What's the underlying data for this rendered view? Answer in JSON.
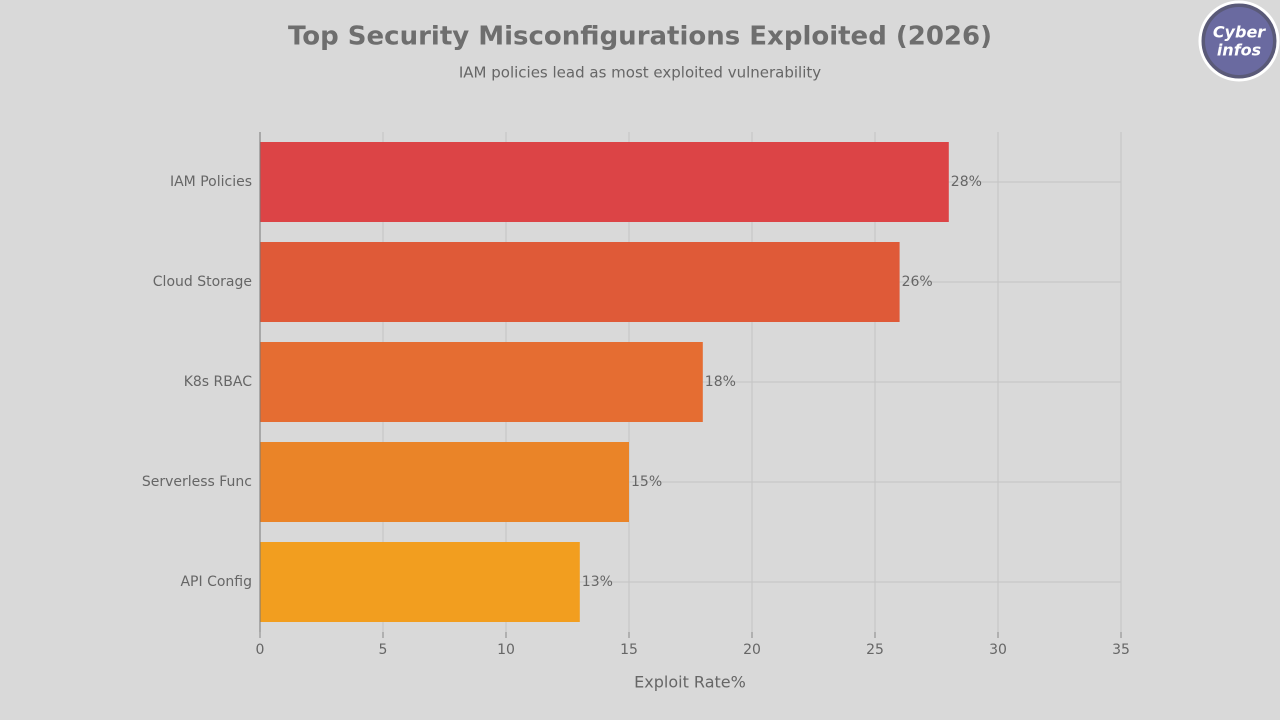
{
  "chart_data": {
    "type": "hbar",
    "title": "Top Security Misconfigurations Exploited (2026)",
    "subtitle": "IAM policies lead as most exploited vulnerability",
    "x_label": "Exploit Rate%",
    "categories": [
      "IAM Policies",
      "Cloud Storage",
      "K8s RBAC",
      "Serverless Func",
      "API Config"
    ],
    "values": [
      28,
      26,
      18,
      15,
      13
    ],
    "value_labels": [
      "28%",
      "26%",
      "18%",
      "15%",
      "13%"
    ],
    "colors": [
      "#dc4446",
      "#df5a38",
      "#e56d32",
      "#ea8428",
      "#f29e1f"
    ],
    "xlim": [
      0,
      35
    ],
    "xticks": [
      0,
      5,
      10,
      15,
      20,
      25,
      30,
      35
    ],
    "grid": true
  },
  "logo": {
    "line1": "Cyber",
    "line2": "infos"
  }
}
